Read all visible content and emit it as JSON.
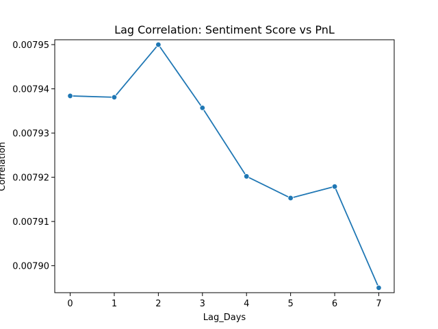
{
  "chart_data": {
    "type": "line",
    "title": "Lag Correlation: Sentiment Score vs PnL",
    "xlabel": "Lag_Days",
    "ylabel": "Correlation",
    "x": [
      0,
      1,
      2,
      3,
      4,
      5,
      6,
      7
    ],
    "series": [
      {
        "values": [
          0.0079384,
          0.0079381,
          0.00795,
          0.0079357,
          0.0079202,
          0.0079153,
          0.0079179,
          0.007895
        ]
      }
    ],
    "xlim": [
      -0.35,
      7.35
    ],
    "ylim": [
      0.0078939,
      0.0079511
    ],
    "xticks": [
      "0",
      "1",
      "2",
      "3",
      "4",
      "5",
      "6",
      "7"
    ],
    "yticks": [
      "0.00790",
      "0.00791",
      "0.00792",
      "0.00793",
      "0.00794",
      "0.00795"
    ],
    "ytick_values": [
      0.0079,
      0.00791,
      0.00792,
      0.00793,
      0.00794,
      0.00795
    ],
    "grid": false,
    "colors": {
      "line": "#1f77b4"
    }
  }
}
